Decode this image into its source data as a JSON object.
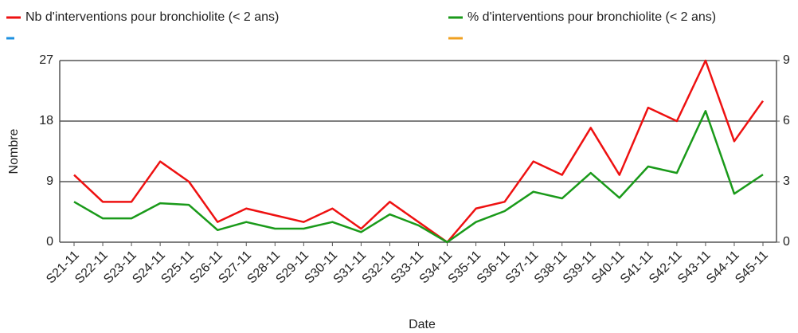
{
  "chart_data": {
    "type": "line",
    "x_label": "Date",
    "y_label": "Nombre",
    "categories": [
      "S21-11",
      "S22-11",
      "S23-11",
      "S24-11",
      "S25-11",
      "S26-11",
      "S27-11",
      "S28-11",
      "S29-11",
      "S30-11",
      "S31-11",
      "S32-11",
      "S33-11",
      "S34-11",
      "S35-11",
      "S36-11",
      "S37-11",
      "S38-11",
      "S39-11",
      "S40-11",
      "S41-11",
      "S42-11",
      "S43-11",
      "S44-11",
      "S45-11"
    ],
    "series": [
      {
        "name": "Nb d'interventions pour bronchiolite (< 2 ans)",
        "color": "#ee1111",
        "axis": "y",
        "values": [
          10,
          6,
          6,
          12,
          9,
          3,
          5,
          4,
          3,
          5,
          2,
          6,
          3,
          0,
          5,
          6,
          12,
          10,
          17,
          10,
          20,
          18,
          27,
          15,
          21
        ]
      },
      {
        "name": "%  d'interventions pour bronchiolite (< 2 ans)",
        "color": "#1a9a1a",
        "axis": "y2",
        "values": [
          2.0,
          1.18,
          1.18,
          1.93,
          1.85,
          0.6,
          1.0,
          0.67,
          0.67,
          1.0,
          0.5,
          1.38,
          0.83,
          0,
          1.0,
          1.54,
          2.5,
          2.17,
          3.43,
          2.2,
          3.75,
          3.43,
          6.5,
          2.4,
          3.35
        ]
      }
    ],
    "ylim": [
      0,
      27
    ],
    "yticks": [
      0,
      9,
      18,
      27
    ],
    "y2lim": [
      0,
      9
    ],
    "y2ticks": [
      0,
      3,
      6,
      9
    ],
    "grid": true
  }
}
